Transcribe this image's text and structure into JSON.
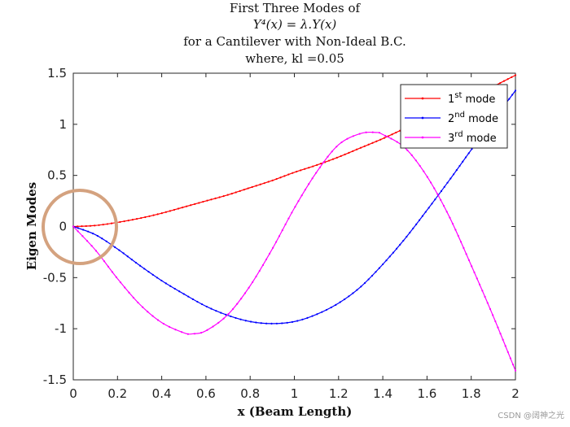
{
  "chart_data": {
    "type": "line",
    "title_lines": [
      "First Three Modes of",
      "Y⁴(x) = λ.Y(x)",
      "for a Cantilever with Non-Ideal B.C.",
      "where, kl =0.05"
    ],
    "xlabel": "x (Beam Length)",
    "ylabel": "Eigen Modes",
    "xlim": [
      0,
      2
    ],
    "ylim": [
      -1.5,
      1.5
    ],
    "xticks": [
      0,
      0.2,
      0.4,
      0.6,
      0.8,
      1,
      1.2,
      1.4,
      1.6,
      1.8,
      2
    ],
    "xtick_labels": [
      "0",
      "0.2",
      "0.4",
      "0.6",
      "0.8",
      "1",
      "1.2",
      "1.4",
      "1.6",
      "1.8",
      "2"
    ],
    "yticks": [
      -1.5,
      -1,
      -0.5,
      0,
      0.5,
      1,
      1.5
    ],
    "ytick_labels": [
      "-1.5",
      "-1",
      "-0.5",
      "0",
      "0.5",
      "1",
      "1.5"
    ],
    "series": [
      {
        "name": "1st mode",
        "base": "1",
        "sup": "st",
        "suffix": " mode",
        "color": "#ff0000",
        "x": [
          0,
          0.1,
          0.2,
          0.3,
          0.4,
          0.5,
          0.6,
          0.7,
          0.8,
          0.9,
          1.0,
          1.1,
          1.2,
          1.3,
          1.4,
          1.5,
          1.6,
          1.7,
          1.8,
          1.9,
          2.0
        ],
        "y": [
          0,
          0.01,
          0.04,
          0.08,
          0.13,
          0.19,
          0.25,
          0.31,
          0.38,
          0.45,
          0.53,
          0.6,
          0.68,
          0.77,
          0.86,
          0.96,
          1.06,
          1.16,
          1.26,
          1.37,
          1.48
        ]
      },
      {
        "name": "2nd mode",
        "base": "2",
        "sup": "nd",
        "suffix": " mode",
        "color": "#0000ff",
        "x": [
          0,
          0.1,
          0.2,
          0.3,
          0.4,
          0.5,
          0.6,
          0.7,
          0.8,
          0.9,
          1.0,
          1.1,
          1.2,
          1.3,
          1.4,
          1.5,
          1.6,
          1.7,
          1.8,
          1.9,
          2.0
        ],
        "y": [
          0,
          -0.08,
          -0.22,
          -0.38,
          -0.53,
          -0.66,
          -0.78,
          -0.87,
          -0.93,
          -0.95,
          -0.93,
          -0.86,
          -0.75,
          -0.59,
          -0.37,
          -0.12,
          0.16,
          0.45,
          0.75,
          1.04,
          1.33
        ]
      },
      {
        "name": "3rd mode",
        "base": "3",
        "sup": "rd",
        "suffix": " mode",
        "color": "#ff00ff",
        "x": [
          0,
          0.1,
          0.2,
          0.3,
          0.4,
          0.5,
          0.54,
          0.6,
          0.7,
          0.8,
          0.9,
          1.0,
          1.1,
          1.2,
          1.3,
          1.37,
          1.4,
          1.5,
          1.6,
          1.7,
          1.8,
          1.9,
          2.0
        ],
        "y": [
          0,
          -0.23,
          -0.51,
          -0.76,
          -0.94,
          -1.04,
          -1.05,
          -1.02,
          -0.86,
          -0.58,
          -0.22,
          0.18,
          0.53,
          0.8,
          0.91,
          0.92,
          0.9,
          0.77,
          0.49,
          0.1,
          -0.38,
          -0.88,
          -1.41
        ]
      }
    ],
    "legend_position": "top-right",
    "annotation": "circle highlighting origin",
    "annotation_color": "#d4a27f",
    "watermark": "CSDN @阔神之光"
  }
}
